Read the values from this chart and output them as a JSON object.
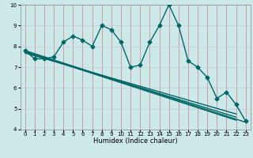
{
  "title": "",
  "xlabel": "Humidex (Indice chaleur)",
  "ylabel": "",
  "bg_color": "#cce8e8",
  "line_color": "#006666",
  "grid_color_v": "#d08080",
  "grid_color_h": "#c8c8d8",
  "xlim": [
    -0.5,
    23.5
  ],
  "ylim": [
    4,
    10
  ],
  "xticks": [
    0,
    1,
    2,
    3,
    4,
    5,
    6,
    7,
    8,
    9,
    10,
    11,
    12,
    13,
    14,
    15,
    16,
    17,
    18,
    19,
    20,
    21,
    22,
    23
  ],
  "yticks": [
    4,
    5,
    6,
    7,
    8,
    9,
    10
  ],
  "wavy_x": [
    0,
    1,
    2,
    3,
    4,
    5,
    6,
    7,
    8,
    9,
    10,
    11,
    12,
    13,
    14,
    15,
    16,
    17,
    18,
    19,
    20,
    21,
    22,
    23
  ],
  "wavy_y": [
    7.8,
    7.4,
    7.4,
    7.5,
    8.2,
    8.5,
    8.3,
    8.0,
    9.0,
    8.8,
    8.2,
    7.0,
    7.1,
    8.2,
    9.0,
    10.0,
    9.0,
    7.3,
    7.0,
    6.5,
    5.5,
    5.8,
    5.2,
    4.4
  ],
  "line1_x": [
    0,
    23
  ],
  "line1_y": [
    7.8,
    4.35
  ],
  "line2_x": [
    0,
    22
  ],
  "line2_y": [
    7.75,
    4.45
  ],
  "line3_x": [
    0,
    22
  ],
  "line3_y": [
    7.72,
    4.6
  ],
  "line4_x": [
    0,
    22
  ],
  "line4_y": [
    7.68,
    4.75
  ],
  "marker": "D",
  "marker_size": 2.5,
  "line_width": 1.0,
  "axis_fontsize": 6,
  "tick_fontsize": 5
}
